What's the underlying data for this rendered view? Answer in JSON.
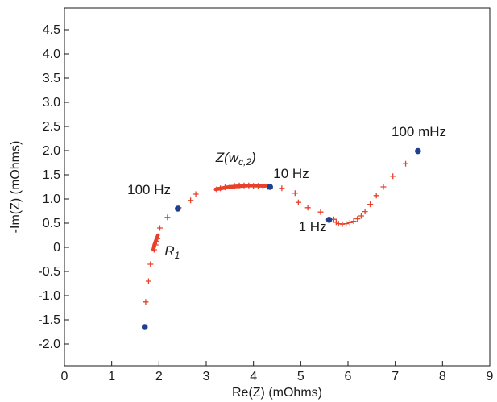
{
  "chart_data": {
    "type": "scatter",
    "xlabel": "Re(Z) (mOhms)",
    "ylabel": "-Im(Z) (mOhms)",
    "xlim": [
      0,
      9
    ],
    "ylim": [
      -2.45,
      4.95
    ],
    "x_ticks": [
      0,
      1,
      2,
      3,
      4,
      5,
      6,
      7,
      8,
      9
    ],
    "y_ticks": [
      -2.0,
      -1.5,
      -1.0,
      -0.5,
      0,
      0.5,
      1.0,
      1.5,
      2.0,
      2.5,
      3.0,
      3.5,
      4.0,
      4.5
    ],
    "y_tick_labels": [
      "-2.0",
      "-1.5",
      "-1.0",
      "-0.5",
      "0",
      "0.5",
      "1.0",
      "1.5",
      "2.0",
      "2.5",
      "3.0",
      "3.5",
      "4.0",
      "4.5"
    ],
    "grid": false,
    "legend": "none",
    "colors": {
      "measured": "#e8402a",
      "marker": "#1f3f8f",
      "axis": "#1a1a1a"
    },
    "series": [
      {
        "marker": "plus",
        "color": "#e8402a",
        "points": [
          [
            1.72,
            -1.13
          ],
          [
            1.78,
            -0.7
          ],
          [
            1.82,
            -0.35
          ],
          [
            1.9,
            -0.05
          ],
          [
            1.93,
            0.05
          ],
          [
            1.95,
            0.12
          ],
          [
            1.97,
            0.18
          ],
          [
            2.02,
            0.4
          ],
          [
            2.18,
            0.62
          ],
          [
            2.42,
            0.82
          ],
          [
            2.67,
            0.97
          ],
          [
            2.78,
            1.1
          ],
          [
            3.22,
            1.2
          ],
          [
            3.3,
            1.22
          ],
          [
            3.4,
            1.24
          ],
          [
            3.5,
            1.26
          ],
          [
            3.6,
            1.27
          ],
          [
            3.7,
            1.28
          ],
          [
            3.8,
            1.28
          ],
          [
            3.9,
            1.28
          ],
          [
            4.0,
            1.27
          ],
          [
            4.1,
            1.27
          ],
          [
            4.2,
            1.26
          ],
          [
            4.3,
            1.25
          ],
          [
            4.6,
            1.22
          ],
          [
            4.88,
            1.12
          ],
          [
            4.95,
            0.93
          ],
          [
            5.15,
            0.82
          ],
          [
            5.42,
            0.73
          ],
          [
            5.7,
            0.58
          ],
          [
            5.75,
            0.52
          ],
          [
            5.8,
            0.49
          ],
          [
            5.88,
            0.48
          ],
          [
            5.96,
            0.49
          ],
          [
            6.04,
            0.51
          ],
          [
            6.12,
            0.54
          ],
          [
            6.2,
            0.59
          ],
          [
            6.28,
            0.65
          ],
          [
            6.36,
            0.74
          ],
          [
            6.47,
            0.89
          ],
          [
            6.6,
            1.07
          ],
          [
            6.75,
            1.25
          ],
          [
            6.95,
            1.47
          ],
          [
            7.22,
            1.73
          ]
        ]
      },
      {
        "marker": "dot",
        "color": "#1f3f8f",
        "points": [
          [
            1.7,
            -1.65
          ],
          [
            2.4,
            0.8
          ],
          [
            4.35,
            1.25
          ],
          [
            5.6,
            0.57
          ],
          [
            7.48,
            1.99
          ]
        ]
      }
    ],
    "segments": [
      {
        "color": "#e8402a",
        "points": [
          [
            1.88,
            -0.05
          ],
          [
            1.9,
            0.05
          ],
          [
            1.95,
            0.18
          ],
          [
            1.98,
            0.25
          ]
        ]
      },
      {
        "color": "#e8402a",
        "points": [
          [
            3.2,
            1.2
          ],
          [
            3.5,
            1.25
          ],
          [
            3.9,
            1.28
          ],
          [
            4.25,
            1.27
          ]
        ]
      }
    ],
    "annotations": [
      {
        "x": 2.25,
        "y": 1.1,
        "anchor": "end",
        "label": "100 Hz"
      },
      {
        "x": 4.42,
        "y": 1.43,
        "anchor": "start",
        "label": "10 Hz"
      },
      {
        "x": 5.55,
        "y": 0.33,
        "anchor": "end",
        "label": "1 Hz"
      },
      {
        "x": 7.5,
        "y": 2.3,
        "anchor": "middle",
        "label": "100 mHz"
      },
      {
        "x": 2.12,
        "y": -0.17,
        "anchor": "start",
        "base": "R",
        "sub": "1"
      },
      {
        "x": 3.2,
        "y": 1.77,
        "anchor": "start",
        "base": "Z(w",
        "sub": "c,2",
        "tail": ")"
      }
    ]
  }
}
